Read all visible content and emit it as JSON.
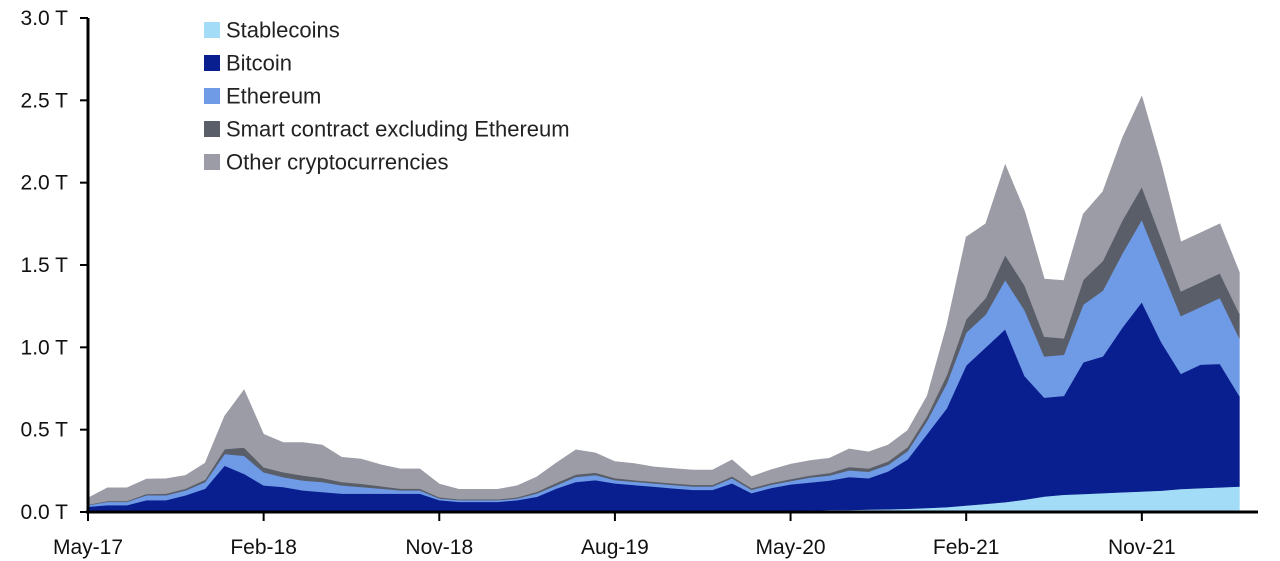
{
  "chart_data": {
    "type": "area",
    "stacked": true,
    "title": "",
    "xlabel": "",
    "ylabel": "",
    "ylim": [
      0,
      3.0
    ],
    "y_ticks": [
      {
        "value": 0.0,
        "label": "0.0 T"
      },
      {
        "value": 0.5,
        "label": "0.5 T"
      },
      {
        "value": 1.0,
        "label": "1.0 T"
      },
      {
        "value": 1.5,
        "label": "1.5 T"
      },
      {
        "value": 2.0,
        "label": "2.0 T"
      },
      {
        "value": 2.5,
        "label": "2.5 T"
      },
      {
        "value": 3.0,
        "label": "3.0 T"
      }
    ],
    "x_ticks": [
      "May-17",
      "Feb-18",
      "Nov-18",
      "Aug-19",
      "May-20",
      "Feb-21",
      "Nov-21"
    ],
    "x": [
      "2017-05",
      "2017-06",
      "2017-07",
      "2017-08",
      "2017-09",
      "2017-10",
      "2017-11",
      "2017-12",
      "2018-01",
      "2018-02",
      "2018-03",
      "2018-04",
      "2018-05",
      "2018-06",
      "2018-07",
      "2018-08",
      "2018-09",
      "2018-10",
      "2018-11",
      "2018-12",
      "2019-01",
      "2019-02",
      "2019-03",
      "2019-04",
      "2019-05",
      "2019-06",
      "2019-07",
      "2019-08",
      "2019-09",
      "2019-10",
      "2019-11",
      "2019-12",
      "2020-01",
      "2020-02",
      "2020-03",
      "2020-04",
      "2020-05",
      "2020-06",
      "2020-07",
      "2020-08",
      "2020-09",
      "2020-10",
      "2020-11",
      "2020-12",
      "2021-01",
      "2021-02",
      "2021-03",
      "2021-04",
      "2021-05",
      "2021-06",
      "2021-07",
      "2021-08",
      "2021-09",
      "2021-10",
      "2021-11",
      "2021-12",
      "2022-01",
      "2022-02",
      "2022-03",
      "2022-04"
    ],
    "legend_position": "top-left",
    "grid": false,
    "series": [
      {
        "name": "Stablecoins",
        "color": "#a3dcf7",
        "values": [
          0.002,
          0.002,
          0.002,
          0.002,
          0.002,
          0.002,
          0.002,
          0.002,
          0.002,
          0.002,
          0.002,
          0.002,
          0.002,
          0.002,
          0.002,
          0.002,
          0.002,
          0.002,
          0.002,
          0.002,
          0.002,
          0.002,
          0.002,
          0.003,
          0.003,
          0.003,
          0.004,
          0.004,
          0.004,
          0.004,
          0.004,
          0.005,
          0.005,
          0.005,
          0.005,
          0.006,
          0.008,
          0.01,
          0.012,
          0.013,
          0.015,
          0.017,
          0.02,
          0.025,
          0.03,
          0.04,
          0.05,
          0.06,
          0.075,
          0.095,
          0.105,
          0.11,
          0.115,
          0.12,
          0.125,
          0.13,
          0.14,
          0.145,
          0.15,
          0.155
        ]
      },
      {
        "name": "Bitcoin",
        "color": "#0a1f8f",
        "values": [
          0.03,
          0.04,
          0.04,
          0.07,
          0.07,
          0.1,
          0.14,
          0.28,
          0.23,
          0.16,
          0.15,
          0.13,
          0.12,
          0.11,
          0.11,
          0.11,
          0.11,
          0.11,
          0.07,
          0.06,
          0.06,
          0.06,
          0.07,
          0.09,
          0.14,
          0.18,
          0.19,
          0.17,
          0.16,
          0.15,
          0.14,
          0.13,
          0.13,
          0.17,
          0.11,
          0.14,
          0.16,
          0.17,
          0.18,
          0.2,
          0.19,
          0.23,
          0.3,
          0.45,
          0.6,
          0.85,
          0.95,
          1.05,
          0.75,
          0.6,
          0.6,
          0.8,
          0.83,
          1.0,
          1.15,
          0.9,
          0.7,
          0.75,
          0.75,
          0.55
        ]
      },
      {
        "name": "Ethereum",
        "color": "#6f9ae6",
        "values": [
          0.01,
          0.02,
          0.02,
          0.03,
          0.03,
          0.03,
          0.04,
          0.07,
          0.11,
          0.08,
          0.06,
          0.06,
          0.06,
          0.05,
          0.04,
          0.03,
          0.02,
          0.02,
          0.01,
          0.01,
          0.01,
          0.01,
          0.01,
          0.02,
          0.02,
          0.03,
          0.03,
          0.02,
          0.02,
          0.02,
          0.02,
          0.02,
          0.02,
          0.03,
          0.02,
          0.02,
          0.02,
          0.03,
          0.03,
          0.04,
          0.04,
          0.04,
          0.05,
          0.08,
          0.15,
          0.2,
          0.2,
          0.3,
          0.4,
          0.25,
          0.25,
          0.35,
          0.4,
          0.45,
          0.5,
          0.45,
          0.35,
          0.35,
          0.4,
          0.35
        ]
      },
      {
        "name": "Smart contract excluding Ethereum",
        "color": "#5a5e68",
        "values": [
          0.003,
          0.005,
          0.005,
          0.008,
          0.01,
          0.01,
          0.015,
          0.03,
          0.05,
          0.03,
          0.03,
          0.03,
          0.025,
          0.02,
          0.02,
          0.015,
          0.01,
          0.01,
          0.008,
          0.006,
          0.006,
          0.006,
          0.008,
          0.01,
          0.015,
          0.015,
          0.015,
          0.012,
          0.01,
          0.01,
          0.01,
          0.01,
          0.01,
          0.012,
          0.01,
          0.01,
          0.012,
          0.012,
          0.015,
          0.02,
          0.02,
          0.02,
          0.025,
          0.03,
          0.05,
          0.08,
          0.1,
          0.15,
          0.15,
          0.12,
          0.1,
          0.15,
          0.18,
          0.2,
          0.2,
          0.18,
          0.15,
          0.15,
          0.15,
          0.15
        ]
      },
      {
        "name": "Other cryptocurrencies",
        "color": "#9b9ca6",
        "values": [
          0.04,
          0.08,
          0.08,
          0.09,
          0.09,
          0.08,
          0.1,
          0.2,
          0.35,
          0.2,
          0.18,
          0.2,
          0.2,
          0.15,
          0.15,
          0.13,
          0.12,
          0.12,
          0.08,
          0.06,
          0.06,
          0.06,
          0.07,
          0.09,
          0.12,
          0.15,
          0.12,
          0.1,
          0.1,
          0.09,
          0.09,
          0.09,
          0.09,
          0.1,
          0.07,
          0.08,
          0.09,
          0.09,
          0.09,
          0.11,
          0.1,
          0.1,
          0.1,
          0.12,
          0.3,
          0.5,
          0.45,
          0.55,
          0.45,
          0.35,
          0.35,
          0.4,
          0.42,
          0.5,
          0.55,
          0.45,
          0.3,
          0.3,
          0.3,
          0.25
        ]
      }
    ]
  }
}
